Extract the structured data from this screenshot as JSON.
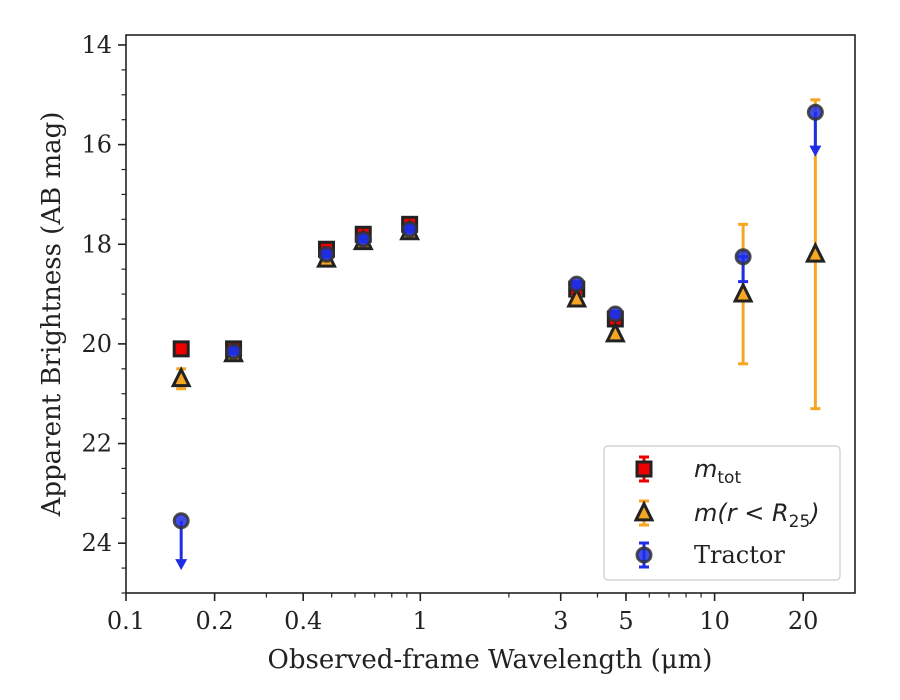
{
  "chart_data": {
    "type": "scatter",
    "title": "",
    "xlabel": "Observed-frame Wavelength (μm)",
    "ylabel": "Apparent Brightness (AB mag)",
    "xscale": "log",
    "xlim": [
      0.1,
      30
    ],
    "ylim": [
      25,
      13.8
    ],
    "y_inverted": true,
    "xticks": [
      0.1,
      0.2,
      0.4,
      1,
      3,
      5,
      10,
      20
    ],
    "xtick_labels": [
      "0.1",
      "0.2",
      "0.4",
      "1",
      "3",
      "5",
      "10",
      "20"
    ],
    "yticks": [
      14,
      16,
      18,
      20,
      22,
      24
    ],
    "ytick_labels": [
      "14",
      "16",
      "18",
      "20",
      "22",
      "24"
    ],
    "grid": false,
    "legend_position": "bottom-right",
    "series": [
      {
        "name": "m_tot",
        "legend_main": "m",
        "legend_sub": "tot",
        "marker": "square",
        "color": "#ee0000",
        "edge_color": "#222222",
        "points": [
          {
            "x": 0.154,
            "y": 20.1,
            "err": 0.05
          },
          {
            "x": 0.232,
            "y": 20.1,
            "err": 0.05
          },
          {
            "x": 0.48,
            "y": 18.1,
            "err": 0.05
          },
          {
            "x": 0.64,
            "y": 17.8,
            "err": 0.05
          },
          {
            "x": 0.92,
            "y": 17.6,
            "err": 0.05
          },
          {
            "x": 3.4,
            "y": 18.9,
            "err": 0.05
          },
          {
            "x": 4.6,
            "y": 19.5,
            "err": 0.05
          }
        ]
      },
      {
        "name": "m(r < R_25)",
        "legend_main": "m(r < R",
        "legend_sub": "25",
        "legend_tail": ")",
        "marker": "triangle",
        "color": "#f5a623",
        "edge_color": "#222222",
        "points": [
          {
            "x": 0.154,
            "y": 20.7,
            "err": 0.2
          },
          {
            "x": 0.232,
            "y": 20.2,
            "err": 0.05
          },
          {
            "x": 0.48,
            "y": 18.3,
            "err": 0.05
          },
          {
            "x": 0.64,
            "y": 17.95,
            "err": 0.05
          },
          {
            "x": 0.92,
            "y": 17.75,
            "err": 0.05
          },
          {
            "x": 3.4,
            "y": 19.1,
            "err": 0.05
          },
          {
            "x": 4.6,
            "y": 19.8,
            "err": 0.05
          },
          {
            "x": 12.5,
            "y": 19.0,
            "err_low": 1.4,
            "err_high": 1.4
          },
          {
            "x": 22.0,
            "y": 18.2,
            "err_low": 3.1,
            "err_high": 3.1
          }
        ]
      },
      {
        "name": "Tractor",
        "marker": "circle",
        "color": "#1f2ee6",
        "edge_color": "#333333",
        "points": [
          {
            "x": 0.154,
            "y": 23.55,
            "upper_limit": true,
            "arrow_to": 24.5
          },
          {
            "x": 0.232,
            "y": 20.15,
            "err": 0.05
          },
          {
            "x": 0.48,
            "y": 18.2,
            "err": 0.05
          },
          {
            "x": 0.64,
            "y": 17.9,
            "err": 0.05
          },
          {
            "x": 0.92,
            "y": 17.7,
            "err": 0.05
          },
          {
            "x": 3.4,
            "y": 18.8,
            "err": 0.05
          },
          {
            "x": 4.6,
            "y": 19.4,
            "err": 0.05
          },
          {
            "x": 12.5,
            "y": 18.25,
            "err_low": 0.0,
            "err_high": 0.5
          },
          {
            "x": 22.0,
            "y": 15.35,
            "upper_limit": true,
            "arrow_to": 16.2
          }
        ]
      }
    ]
  }
}
